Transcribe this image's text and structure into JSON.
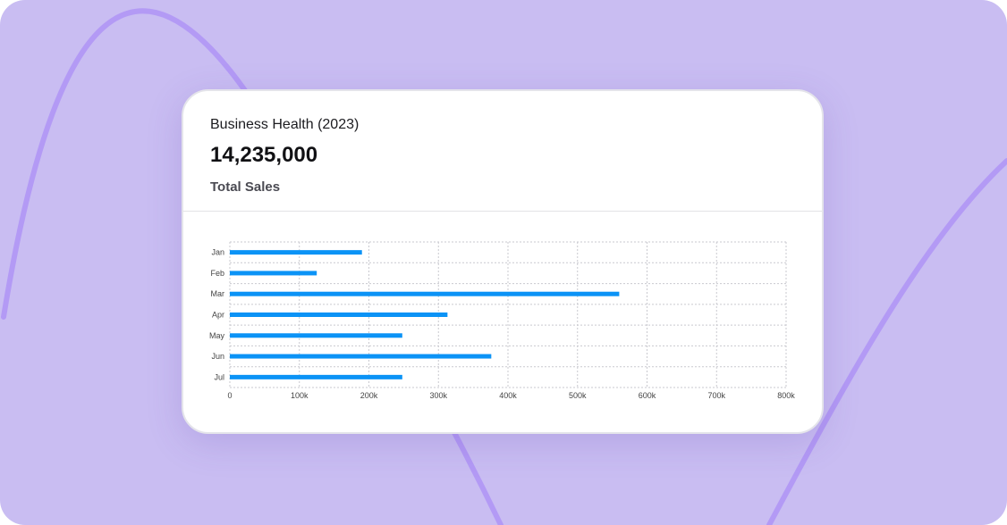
{
  "colors": {
    "background": "#c9bdf2",
    "accent_curve": "#b39af5",
    "bar": "#0b93f6"
  },
  "card": {
    "title": "Business Health (2023)",
    "value": "14,235,000",
    "subtitle": "Total Sales"
  },
  "chart_data": {
    "type": "bar",
    "orientation": "horizontal",
    "categories": [
      "Jan",
      "Feb",
      "Mar",
      "Apr",
      "May",
      "Jun",
      "Jul"
    ],
    "values": [
      190000,
      125000,
      560000,
      313000,
      248000,
      376000,
      248000
    ],
    "xlim": [
      0,
      800000
    ],
    "xticks": [
      "0",
      "100k",
      "200k",
      "300k",
      "400k",
      "500k",
      "600k",
      "700k",
      "800k"
    ],
    "grid": true,
    "legend": "none"
  }
}
